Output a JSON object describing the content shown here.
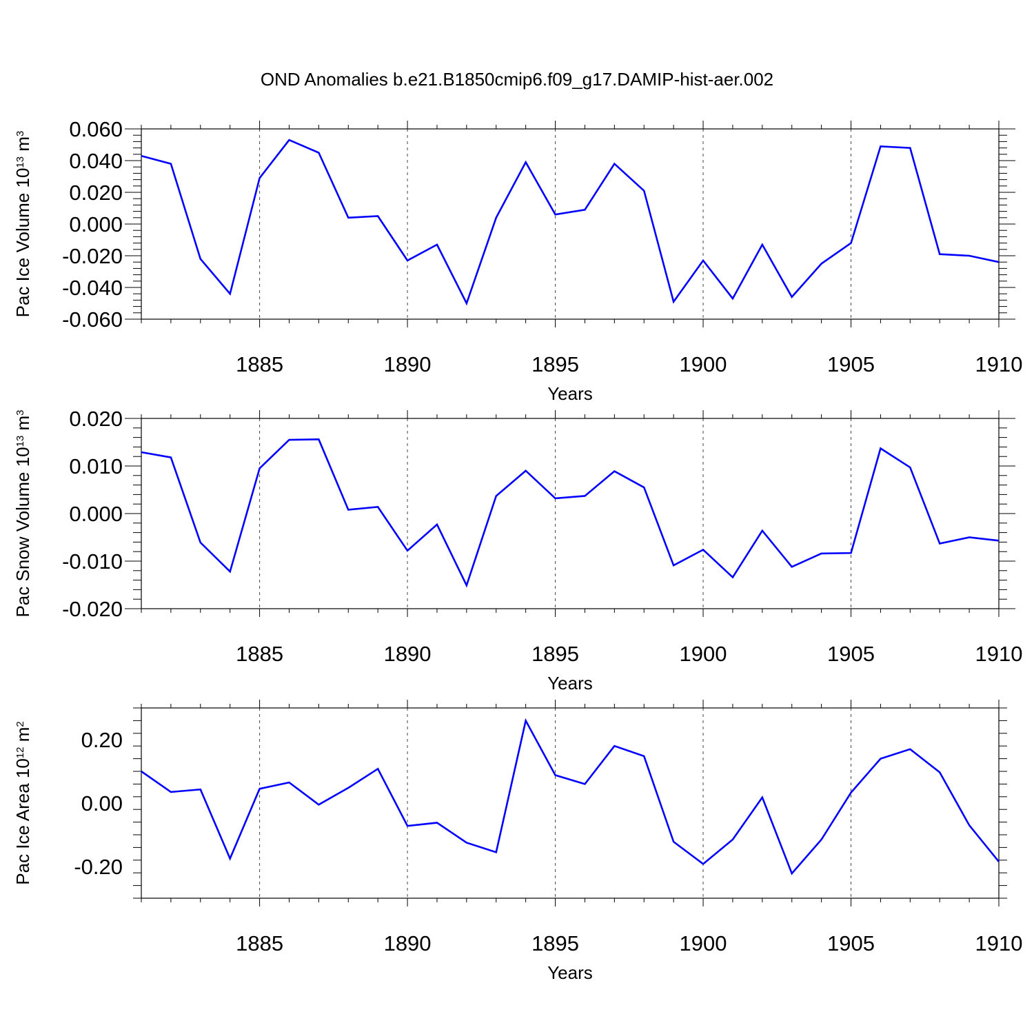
{
  "title": "OND Anomalies b.e21.B1850cmip6.f09_g17.DAMIP-hist-aer.002",
  "line_color": "#0000ff",
  "chart_data": [
    {
      "type": "line",
      "id": "ice-volume",
      "ylabel": "Pac Ice Volume 10",
      "ylabel_exp": "13",
      "ylabel_unit": " m",
      "ylabel_unit_exp": "3",
      "xlabel": "Years",
      "xlim": [
        1881,
        1910
      ],
      "ylim": [
        -0.06,
        0.06
      ],
      "yticks": [
        -0.06,
        -0.04,
        -0.02,
        0.0,
        0.02,
        0.04,
        0.06
      ],
      "ytick_labels": [
        "-0.060",
        "-0.040",
        "-0.020",
        "0.000",
        "0.020",
        "0.040",
        "0.060"
      ],
      "xticks": [
        1885,
        1890,
        1895,
        1900,
        1905,
        1910
      ],
      "xtick_labels": [
        "1885",
        "1890",
        "1895",
        "1900",
        "1905",
        "1910"
      ],
      "grid_x": true,
      "x": [
        1881,
        1882,
        1883,
        1884,
        1885,
        1886,
        1887,
        1888,
        1889,
        1890,
        1891,
        1892,
        1893,
        1894,
        1895,
        1896,
        1897,
        1898,
        1899,
        1900,
        1901,
        1902,
        1903,
        1904,
        1905,
        1906,
        1907,
        1908,
        1909,
        1910
      ],
      "values": [
        0.043,
        0.038,
        -0.022,
        -0.044,
        0.029,
        0.053,
        0.045,
        0.004,
        0.005,
        -0.023,
        -0.013,
        -0.05,
        0.004,
        0.039,
        0.006,
        0.009,
        0.038,
        0.021,
        -0.049,
        -0.023,
        -0.047,
        -0.013,
        -0.046,
        -0.025,
        -0.012,
        0.049,
        0.048,
        -0.019,
        -0.02,
        -0.024
      ]
    },
    {
      "type": "line",
      "id": "snow-volume",
      "ylabel": "Pac Snow Volume 10",
      "ylabel_exp": "13",
      "ylabel_unit": " m",
      "ylabel_unit_exp": "3",
      "xlabel": "Years",
      "xlim": [
        1881,
        1910
      ],
      "ylim": [
        -0.02,
        0.02
      ],
      "yticks": [
        -0.02,
        -0.01,
        0.0,
        0.01,
        0.02
      ],
      "ytick_labels": [
        "-0.020",
        "-0.010",
        "0.000",
        "0.010",
        "0.020"
      ],
      "xticks": [
        1885,
        1890,
        1895,
        1900,
        1905,
        1910
      ],
      "xtick_labels": [
        "1885",
        "1890",
        "1895",
        "1900",
        "1905",
        "1910"
      ],
      "grid_x": true,
      "x": [
        1881,
        1882,
        1883,
        1884,
        1885,
        1886,
        1887,
        1888,
        1889,
        1890,
        1891,
        1892,
        1893,
        1894,
        1895,
        1896,
        1897,
        1898,
        1899,
        1900,
        1901,
        1902,
        1903,
        1904,
        1905,
        1906,
        1907,
        1908,
        1909,
        1910
      ],
      "values": [
        0.0129,
        0.0118,
        -0.0061,
        -0.0122,
        0.0095,
        0.0155,
        0.0156,
        0.0008,
        0.0014,
        -0.0078,
        -0.0023,
        -0.0151,
        0.0037,
        0.009,
        0.0032,
        0.0037,
        0.0089,
        0.0055,
        -0.0109,
        -0.0076,
        -0.0134,
        -0.0036,
        -0.0112,
        -0.0084,
        -0.0083,
        0.0137,
        0.0097,
        -0.0063,
        -0.005,
        -0.0057
      ]
    },
    {
      "type": "line",
      "id": "ice-area",
      "ylabel": "Pac Ice Area 10",
      "ylabel_exp": "12",
      "ylabel_unit": " m",
      "ylabel_unit_exp": "2",
      "xlabel": "Years",
      "xlim": [
        1881,
        1910
      ],
      "ylim": [
        -0.3,
        0.3
      ],
      "yticks": [
        -0.2,
        0.0,
        0.2
      ],
      "ytick_labels": [
        "-0.20",
        "0.00",
        "0.20"
      ],
      "xticks": [
        1885,
        1890,
        1895,
        1900,
        1905,
        1910
      ],
      "xtick_labels": [
        "1885",
        "1890",
        "1895",
        "1900",
        "1905",
        "1910"
      ],
      "grid_x": true,
      "x": [
        1881,
        1882,
        1883,
        1884,
        1885,
        1886,
        1887,
        1888,
        1889,
        1890,
        1891,
        1892,
        1893,
        1894,
        1895,
        1896,
        1897,
        1898,
        1899,
        1900,
        1901,
        1902,
        1903,
        1904,
        1905,
        1906,
        1907,
        1908,
        1909,
        1910
      ],
      "values": [
        0.1,
        0.035,
        0.043,
        -0.175,
        0.045,
        0.065,
        -0.005,
        0.048,
        0.108,
        -0.072,
        -0.062,
        -0.125,
        -0.155,
        0.26,
        0.088,
        0.06,
        0.18,
        0.148,
        -0.122,
        -0.192,
        -0.115,
        0.018,
        -0.222,
        -0.115,
        0.033,
        0.14,
        0.17,
        0.097,
        -0.07,
        -0.185
      ]
    }
  ]
}
